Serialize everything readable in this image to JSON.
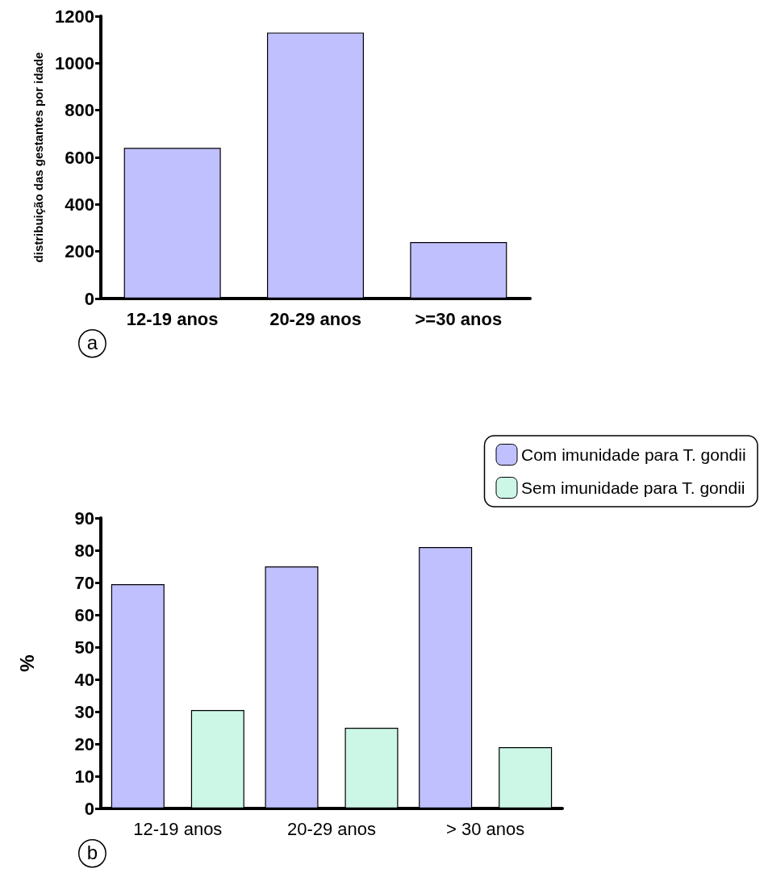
{
  "chart_data": [
    {
      "type": "bar",
      "ylabel": "distribuição das gestantes por idade",
      "categories": [
        "12-19 anos",
        "20-29 anos",
        ">=30 anos"
      ],
      "series": [
        {
          "color": "#c0c0ff",
          "values": [
            640,
            1130,
            240
          ]
        }
      ],
      "ylim": [
        0,
        1200
      ],
      "yticks": [
        0,
        200,
        400,
        600,
        800,
        1000,
        1200
      ],
      "grid": false,
      "legend": false,
      "annotations": [
        "a"
      ]
    },
    {
      "type": "bar",
      "ylabel": "%",
      "categories": [
        "12-19 anos",
        "20-29 anos",
        "> 30 anos"
      ],
      "series": [
        {
          "name": "Com imunidade para T. gondii",
          "color": "#c0c0ff",
          "values": [
            69.5,
            75,
            81
          ]
        },
        {
          "name": "Sem imunidade para T. gondii",
          "color": "#ccf7e6",
          "values": [
            30.5,
            25,
            19
          ]
        }
      ],
      "ylim": [
        0,
        90
      ],
      "yticks": [
        0,
        10,
        20,
        30,
        40,
        50,
        60,
        70,
        80,
        90
      ],
      "grid": false,
      "legend": "top right",
      "annotations": [
        "b"
      ]
    }
  ]
}
